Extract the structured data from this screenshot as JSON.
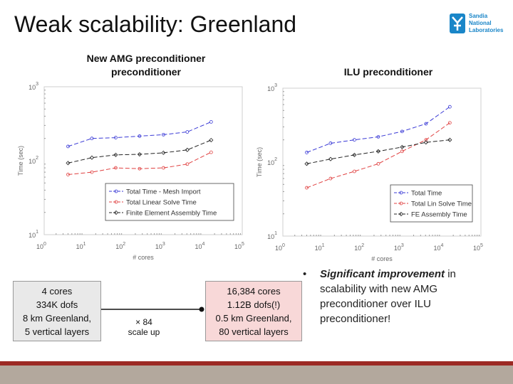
{
  "slide": {
    "title": "Weak scalability: Greenland",
    "logo_lines": [
      "Sandia",
      "National",
      "Laboratories"
    ]
  },
  "chart_data": [
    {
      "type": "line",
      "title": "New AMG preconditioner preconditioner",
      "xlabel": "# cores",
      "ylabel": "Time (sec)",
      "xscale": "log",
      "yscale": "log",
      "xlim": [
        1,
        100000
      ],
      "ylim": [
        10,
        1000
      ],
      "x_ticks": [
        "10^0",
        "10^1",
        "10^2",
        "10^3",
        "10^4",
        "10^5"
      ],
      "y_ticks": [
        "10^1",
        "10^2",
        "10^3"
      ],
      "legend_position": "bottom-right",
      "series": [
        {
          "name": "Total Time - Mesh Import",
          "color": "#3a3ad6",
          "marker": "circle",
          "x": [
            4,
            16,
            64,
            256,
            1024,
            4096,
            16384
          ],
          "y": [
            156,
            200,
            205,
            215,
            225,
            245,
            335
          ]
        },
        {
          "name": "Total Linear Solve Time",
          "color": "#e04040",
          "marker": "circle",
          "x": [
            4,
            16,
            64,
            256,
            1024,
            4096,
            16384
          ],
          "y": [
            65,
            70,
            80,
            78,
            80,
            90,
            130
          ]
        },
        {
          "name": "Finite Element Assembly Time",
          "color": "#222222",
          "marker": "diamond",
          "x": [
            4,
            16,
            64,
            256,
            1024,
            4096,
            16384
          ],
          "y": [
            93,
            110,
            120,
            122,
            128,
            140,
            190
          ]
        }
      ]
    },
    {
      "type": "line",
      "title": "ILU preconditioner",
      "xlabel": "# cores",
      "ylabel": "Time (sec)",
      "xscale": "log",
      "yscale": "log",
      "xlim": [
        1,
        100000
      ],
      "ylim": [
        10,
        1000
      ],
      "x_ticks": [
        "10^0",
        "10^1",
        "10^2",
        "10^3",
        "10^4",
        "10^5"
      ],
      "y_ticks": [
        "10^1",
        "10^2",
        "10^3"
      ],
      "legend_position": "bottom-right",
      "series": [
        {
          "name": "Total Time",
          "color": "#3a3ad6",
          "marker": "circle",
          "x": [
            4,
            16,
            64,
            256,
            1024,
            4096,
            16384
          ],
          "y": [
            135,
            180,
            200,
            220,
            260,
            330,
            560
          ]
        },
        {
          "name": "Total Lin Solve Time",
          "color": "#e04040",
          "marker": "circle",
          "x": [
            4,
            16,
            64,
            256,
            1024,
            4096,
            16384
          ],
          "y": [
            45,
            60,
            75,
            95,
            140,
            200,
            340
          ]
        },
        {
          "name": "FE Assembly Time",
          "color": "#222222",
          "marker": "diamond",
          "x": [
            4,
            16,
            64,
            256,
            1024,
            4096,
            16384
          ],
          "y": [
            95,
            110,
            125,
            140,
            160,
            185,
            200
          ]
        }
      ]
    }
  ],
  "annotations": {
    "left_box": [
      "4 cores",
      "334K dofs",
      "8 km Greenland,",
      "5 vertical layers"
    ],
    "right_box": [
      "16,384 cores",
      "1.12B dofs(!)",
      "0.5 km Greenland,",
      "80 vertical layers"
    ],
    "scale_factor": "× 84",
    "scale_label": "scale up",
    "bullet_bold": "Significant improvement",
    "bullet_rest": " in scalability with new AMG preconditioner over ILU preconditioner!"
  },
  "colors": {
    "bottom_bar": "#b3a89d",
    "bottom_stripe": "#9c2a24",
    "logo": "#1a86c8"
  }
}
